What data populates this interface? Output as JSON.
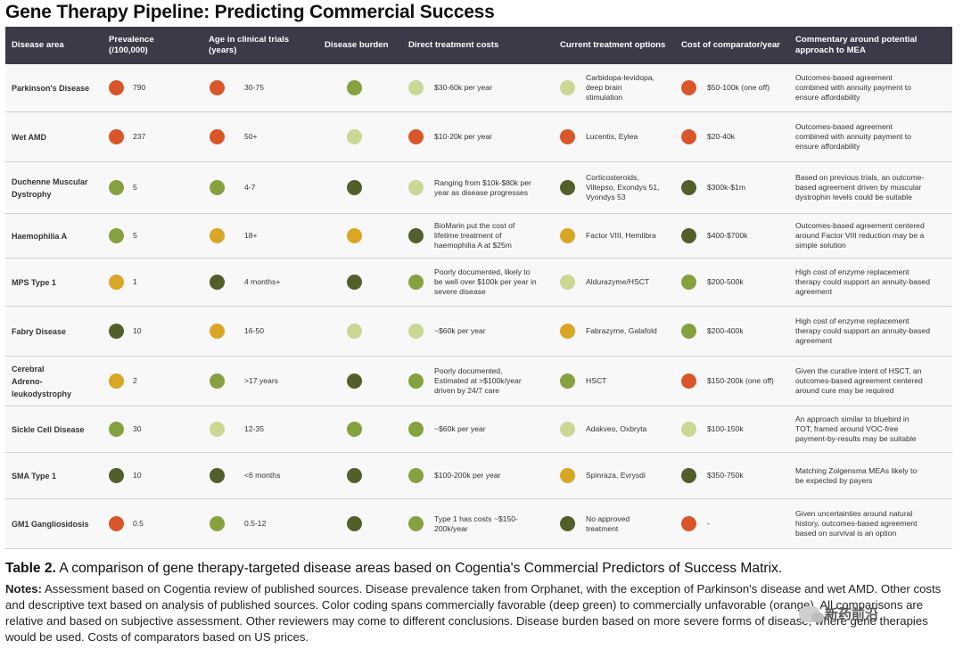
{
  "title": "Gene Therapy Pipeline: Predicting Commercial Success",
  "columns": [
    "Disease area",
    "Prevalence\n(/100,000)",
    "Age in clinical trials\n(years)",
    "Disease burden",
    "Direct treatment costs",
    "Current treatment options",
    "Cost of comparator/year",
    "Commentary around potential\napproach to MEA"
  ],
  "colors": {
    "orange": "#d9562a",
    "yellow": "#d9a626",
    "light": "#c9d894",
    "mid": "#86a13f",
    "dark": "#51602b"
  },
  "rows": [
    {
      "area": "Parkinson's Disease",
      "prevalence": {
        "value": "790",
        "color": "orange"
      },
      "age": {
        "value": "30-75",
        "color": "orange"
      },
      "burden": {
        "color": "mid"
      },
      "direct": {
        "value": "$30-60k per year",
        "color": "light"
      },
      "options": {
        "value": "Carbidopa-levidopa,\ndeep brain\nstimulation",
        "color": "light"
      },
      "comparator": {
        "value": "$50-100k    (one off)",
        "color": "orange"
      },
      "commentary": "Outcomes-based agreement\ncombined with annuity payment to\nensure affordability"
    },
    {
      "area": "Wet AMD",
      "prevalence": {
        "value": "237",
        "color": "orange"
      },
      "age": {
        "value": "50+",
        "color": "orange"
      },
      "burden": {
        "color": "light"
      },
      "direct": {
        "value": "$10-20k per year",
        "color": "orange"
      },
      "options": {
        "value": "Lucentis, Eylea",
        "color": "orange"
      },
      "comparator": {
        "value": "$20-40k",
        "color": "orange"
      },
      "commentary": "Outcomes-based agreement\ncombined with annuity payment to\nensure affordability"
    },
    {
      "area": "Duchenne Muscular\nDystrophy",
      "prevalence": {
        "value": "5",
        "color": "mid"
      },
      "age": {
        "value": "4-7",
        "color": "mid"
      },
      "burden": {
        "color": "dark"
      },
      "direct": {
        "value": "Ranging from $10k-$80k per\nyear as disease progresses",
        "color": "light"
      },
      "options": {
        "value": "Corticosteroids,\nViltepso, Exondys 51,\nVyondys 53",
        "color": "dark"
      },
      "comparator": {
        "value": "$300k-$1m",
        "color": "dark"
      },
      "commentary": "Based on previous trials, an outcome-\nbased agreement driven by muscular\ndystrophin levels could be suitable"
    },
    {
      "area": "Haemophilia A",
      "prevalence": {
        "value": "5",
        "color": "mid"
      },
      "age": {
        "value": "18+",
        "color": "yellow"
      },
      "burden": {
        "color": "yellow"
      },
      "direct": {
        "value": "BioMarin put the cost of\nlifetime treatment of\nhaemophilia A at $25m",
        "color": "dark"
      },
      "options": {
        "value": "Factor VIII, Hemlibra",
        "color": "yellow"
      },
      "comparator": {
        "value": "$400-$700k",
        "color": "dark"
      },
      "commentary": "Outcomes-based agreement centered\naround Factor VIII reduction may be a\nsimple solution"
    },
    {
      "area": "MPS Type 1",
      "prevalence": {
        "value": "1",
        "color": "yellow"
      },
      "age": {
        "value": "4 months+",
        "color": "dark"
      },
      "burden": {
        "color": "dark"
      },
      "direct": {
        "value": "Poorly documented, likely to\nbe well over $100k per year in\nsevere disease",
        "color": "mid"
      },
      "options": {
        "value": "Aldurazyme/HSCT",
        "color": "light"
      },
      "comparator": {
        "value": "$200-500k",
        "color": "mid"
      },
      "commentary": "High cost of enzyme replacement\ntherapy could support an annuity-based\nagreement"
    },
    {
      "area": "Fabry Disease",
      "prevalence": {
        "value": "10",
        "color": "dark"
      },
      "age": {
        "value": "16-50",
        "color": "yellow"
      },
      "burden": {
        "color": "light"
      },
      "direct": {
        "value": "~$60k per year",
        "color": "light"
      },
      "options": {
        "value": "Fabrazyme, Galafold",
        "color": "yellow"
      },
      "comparator": {
        "value": "$200-400k",
        "color": "mid"
      },
      "commentary": "High cost of enzyme replacement\ntherapy could support an annuity-based\nagreement"
    },
    {
      "area": "Cerebral\nAdreno-\nleukodystrophy",
      "prevalence": {
        "value": "2",
        "color": "yellow"
      },
      "age": {
        "value": ">17 years",
        "color": "mid"
      },
      "burden": {
        "color": "dark"
      },
      "direct": {
        "value": "Poorly documented,\nEstimated at >$100k/year\ndriven by 24/7 care",
        "color": "mid"
      },
      "options": {
        "value": "HSCT",
        "color": "mid"
      },
      "comparator": {
        "value": "$150-200k (one off)",
        "color": "orange"
      },
      "commentary": "Given the curative intent of HSCT, an\noutcomes-based agreement centered\naround cure may be required"
    },
    {
      "area": "Sickle Cell Disease",
      "prevalence": {
        "value": "30",
        "color": "mid"
      },
      "age": {
        "value": "12-35",
        "color": "light"
      },
      "burden": {
        "color": "mid"
      },
      "direct": {
        "value": "~$60k per year",
        "color": "mid"
      },
      "options": {
        "value": "Adakveo, Oxbryta",
        "color": "light"
      },
      "comparator": {
        "value": "$100-150k",
        "color": "light"
      },
      "commentary": "An approach similar to bluebird in\nTOT, framed around VOC-free\npayment-by-results may be suitable"
    },
    {
      "area": "SMA Type 1",
      "prevalence": {
        "value": "10",
        "color": "dark"
      },
      "age": {
        "value": "<6 months",
        "color": "dark"
      },
      "burden": {
        "color": "dark"
      },
      "direct": {
        "value": "$100-200k per year",
        "color": "mid"
      },
      "options": {
        "value": "Spinraza, Evrysdi",
        "color": "yellow"
      },
      "comparator": {
        "value": "$350-750k",
        "color": "dark"
      },
      "commentary": "Matching Zolgensma MEAs likely to\nbe expected by payers"
    },
    {
      "area": "GM1 Gangliosidosis",
      "prevalence": {
        "value": "0.5",
        "color": "orange"
      },
      "age": {
        "value": "0.5-12",
        "color": "mid"
      },
      "burden": {
        "color": "dark"
      },
      "direct": {
        "value": "Type 1 has costs ~$150-\n200k/year",
        "color": "mid"
      },
      "options": {
        "value": "No approved\ntreatment",
        "color": "dark"
      },
      "comparator": {
        "value": "-",
        "color": "orange"
      },
      "commentary": "Given uncertainties around natural\nhistory, outcomes-based agreement\nbased on survival is an option"
    }
  ],
  "caption": {
    "label": "Table 2.",
    "text": " A comparison of gene therapy-targeted disease areas based on Cogentia's Commercial Predictors of Success Matrix."
  },
  "notes": {
    "label": "Notes:",
    "text": " Assessment based on Cogentia review of published sources. Disease prevalence taken from Orphanet, with the exception of Parkinson's disease and wet AMD. Other costs and descriptive text based on analysis of published sources. Color coding spans commercially favorable (deep green) to commercially unfavorable (orange). All comparisons are relative and based on subjective assessment. Other reviewers may come to different conclusions. Disease burden based on more severe forms of disease, where gene therapies would be used. Costs of comparators based on US prices."
  },
  "watermark": "新药前沿"
}
